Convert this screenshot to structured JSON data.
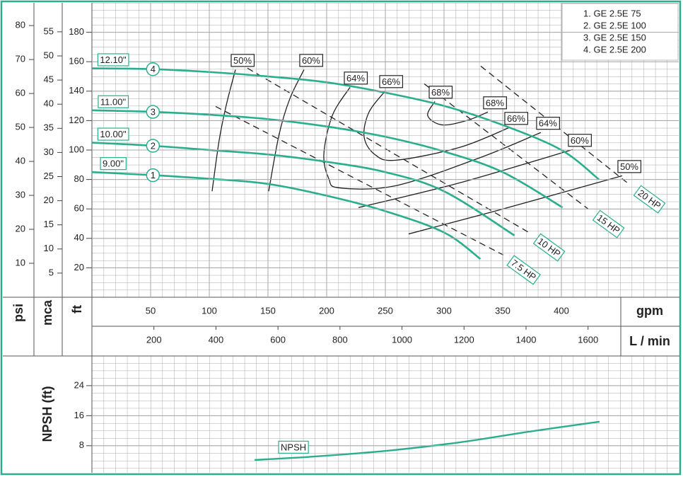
{
  "chart_data": [
    {
      "type": "line",
      "x_label": "gpm",
      "xlim": [
        0,
        500
      ],
      "xticks": [
        50,
        100,
        150,
        200,
        250,
        300,
        350,
        400
      ],
      "y_label": "ft",
      "ylim": [
        0,
        200
      ],
      "yticks": [
        20,
        40,
        60,
        80,
        100,
        120,
        140,
        160,
        180
      ],
      "psi_axis": {
        "label": "psi",
        "lim": [
          0,
          86.7
        ],
        "ticks": [
          10,
          20,
          30,
          40,
          50,
          60,
          70,
          80
        ]
      },
      "mca_axis": {
        "label": "mca",
        "lim": [
          0,
          61
        ],
        "ticks": [
          5,
          10,
          15,
          20,
          25,
          30,
          35,
          40,
          45,
          50,
          55
        ]
      },
      "lmin_axis": {
        "label": "L / min",
        "lim": [
          0,
          1892.5
        ],
        "ticks": [
          200,
          400,
          600,
          800,
          1000,
          1200,
          1400,
          1600
        ]
      },
      "grid": true,
      "legend": [
        "1. GE 2.5E 75",
        "2. GE 2.5E 100",
        "3. GE 2.5E 150",
        "4. GE 2.5E 200"
      ],
      "series": [
        {
          "name": "9.00\"",
          "number": "1",
          "color": "#2aae8e",
          "x": [
            0,
            50,
            100,
            150,
            200,
            250,
            300,
            331
          ],
          "values": [
            85,
            83,
            80.5,
            77,
            69,
            58.5,
            44,
            26
          ]
        },
        {
          "name": "10.00\"",
          "number": "2",
          "color": "#2aae8e",
          "x": [
            0,
            50,
            100,
            150,
            200,
            250,
            300,
            360
          ],
          "values": [
            105,
            103,
            100,
            97,
            92,
            85,
            72,
            42
          ]
        },
        {
          "name": "11.00\"",
          "number": "3",
          "color": "#2aae8e",
          "x": [
            0,
            50,
            100,
            150,
            200,
            250,
            300,
            350,
            401
          ],
          "values": [
            127,
            126,
            124,
            121,
            116,
            109,
            99,
            85,
            61
          ]
        },
        {
          "name": "12.10\"",
          "number": "4",
          "color": "#2aae8e",
          "x": [
            0,
            50,
            100,
            150,
            200,
            250,
            300,
            350,
            400,
            432
          ],
          "values": [
            155.5,
            155,
            153,
            150,
            146,
            139,
            130,
            117,
            100,
            80
          ]
        }
      ],
      "efficiency_curves": [
        {
          "name": "50%",
          "x": [
            102.4,
            108.4,
            114.5,
            122.3
          ],
          "values": [
            72,
            106.5,
            130.6,
            154.6
          ]
        },
        {
          "name": "60%",
          "x": [
            150.6,
            159.6,
            168.7,
            180.7
          ],
          "values": [
            72,
            111,
            135,
            154.6
          ]
        },
        {
          "name": "64%",
          "x": [
            219.9,
            204.8,
            197.6,
            201.8,
            210.8,
            259,
            331.3,
            382.5
          ],
          "values": [
            142.6,
            123.4,
            97,
            80.6,
            74.3,
            75.8,
            95,
            111.9
          ]
        },
        {
          "name": "66%",
          "x": [
            250,
            236.1,
            231.9,
            241,
            259,
            313.3,
            355.4
          ],
          "values": [
            140.2,
            125.8,
            109,
            97,
            93.1,
            101.8,
            115.2
          ]
        },
        {
          "name": "68%",
          "x": [
            292.2,
            286.1,
            298.2,
            319.3,
            337.3
          ],
          "values": [
            133,
            123.4,
            117.1,
            120,
            125.8
          ]
        },
        {
          "name": "60%",
          "x": [
            227.1,
            313.3,
            409.6
          ],
          "values": [
            60.9,
            77.7,
            100.3
          ]
        },
        {
          "name": "50%",
          "x": [
            269.9,
            343.4,
            451.8
          ],
          "values": [
            43,
            58.5,
            82.5
          ]
        }
      ],
      "power_lines": [
        {
          "name": "7.5 HP",
          "x": [
            105.4,
            350.6
          ],
          "values": [
            129.6,
            28.7
          ]
        },
        {
          "name": "10 HP",
          "x": [
            132.5,
            372.3
          ],
          "values": [
            155.6,
            44
          ]
        },
        {
          "name": "15 HP",
          "x": [
            283.1,
            422.9
          ],
          "values": [
            145,
            59.9
          ]
        },
        {
          "name": "20 HP",
          "x": [
            331.3,
            457.8
          ],
          "values": [
            157,
            76.7
          ]
        }
      ]
    },
    {
      "type": "line",
      "y_label": "NPSH (ft)",
      "ylim": [
        0.8,
        31.9
      ],
      "yticks": [
        8,
        16,
        24
      ],
      "xlim": [
        0,
        500
      ],
      "grid": true,
      "series": [
        {
          "name": "NPSH",
          "color": "#2aae8e",
          "x": [
            138.6,
            192.8,
            253,
            313.3,
            373.5,
            432.5
          ],
          "values": [
            4.2,
            5.2,
            6.7,
            8.9,
            11.8,
            14.4
          ]
        }
      ]
    }
  ]
}
